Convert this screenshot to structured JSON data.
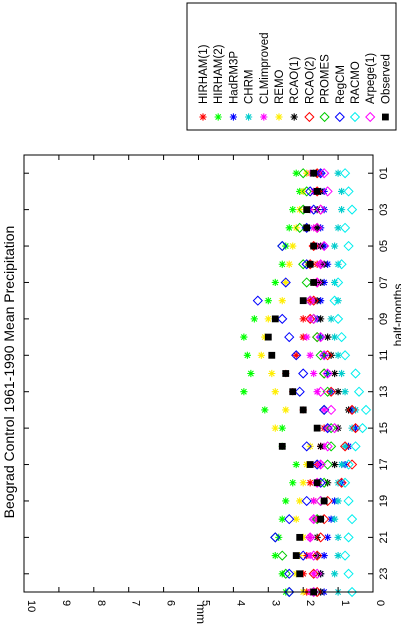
{
  "chart_data": {
    "type": "scatter",
    "title": "Beograd Control 1961-1990 Mean Precipitation",
    "xlabel": "half-months",
    "ylabel": "mm",
    "xlim": [
      0,
      24
    ],
    "ylim": [
      0,
      10
    ],
    "x_ticks": [
      "01",
      "03",
      "05",
      "07",
      "09",
      "11",
      "13",
      "15",
      "17",
      "19",
      "21",
      "23"
    ],
    "y_ticks": [
      "0",
      "1",
      "2",
      "3",
      "4",
      "5",
      "6",
      "7",
      "8",
      "9",
      "10"
    ],
    "x": [
      1,
      2,
      3,
      4,
      5,
      6,
      7,
      8,
      9,
      10,
      11,
      12,
      13,
      14,
      15,
      16,
      17,
      18,
      19,
      20,
      21,
      22,
      23,
      24
    ],
    "legend_position": "top-right",
    "series": [
      {
        "name": "HIRHAM(1)",
        "color": "#ff0000",
        "marker": "star",
        "values": [
          1.6,
          1.7,
          1.8,
          1.9,
          1.7,
          1.6,
          1.7,
          1.8,
          2.0,
          2.0,
          2.2,
          2.5,
          2.3,
          2.0,
          1.4,
          1.5,
          1.6,
          1.8,
          1.7,
          1.6,
          1.8,
          1.9,
          2.0,
          1.9
        ]
      },
      {
        "name": "HIRHAM(2)",
        "color": "#00ff00",
        "marker": "star",
        "values": [
          2.2,
          2.1,
          2.3,
          2.4,
          2.5,
          2.6,
          2.8,
          3.0,
          3.4,
          3.7,
          3.6,
          3.5,
          3.7,
          3.1,
          2.6,
          2.6,
          2.2,
          2.3,
          2.5,
          2.6,
          2.7,
          2.8,
          2.6,
          2.5
        ]
      },
      {
        "name": "HadRM3P",
        "color": "#0000ff",
        "marker": "star",
        "values": [
          1.5,
          1.4,
          1.4,
          1.5,
          1.4,
          1.3,
          1.4,
          1.5,
          1.6,
          1.5,
          1.4,
          1.3,
          1.2,
          0.6,
          0.5,
          0.7,
          0.8,
          0.9,
          1.1,
          1.2,
          1.3,
          1.4,
          1.5,
          1.4
        ]
      },
      {
        "name": "CHRM",
        "color": "#00cccc",
        "marker": "star",
        "values": [
          1.0,
          0.9,
          0.9,
          1.0,
          1.1,
          1.0,
          1.1,
          1.0,
          1.2,
          1.1,
          1.0,
          0.9,
          0.8,
          0.5,
          0.6,
          0.8,
          0.9,
          1.0,
          1.0,
          1.1,
          1.0,
          1.0,
          1.1,
          1.0
        ]
      },
      {
        "name": "CLMimproved",
        "color": "#ff00ff",
        "marker": "star",
        "values": [
          1.8,
          1.7,
          1.8,
          1.7,
          1.6,
          1.5,
          1.6,
          1.7,
          1.8,
          1.9,
          1.8,
          1.7,
          1.6,
          1.4,
          1.3,
          1.4,
          1.5,
          1.6,
          1.7,
          1.7,
          1.8,
          1.8,
          1.7,
          1.8
        ]
      },
      {
        "name": "REMO",
        "color": "#ffee00",
        "marker": "star",
        "values": [
          1.9,
          2.0,
          2.1,
          2.2,
          2.3,
          2.4,
          2.5,
          2.6,
          3.0,
          3.1,
          3.2,
          2.9,
          2.8,
          2.5,
          2.8,
          1.8,
          1.9,
          2.0,
          2.1,
          2.2,
          2.0,
          2.1,
          2.2,
          2.0
        ]
      },
      {
        "name": "RCAO(1)",
        "color": "#000000",
        "marker": "star",
        "values": [
          1.7,
          1.5,
          1.6,
          1.6,
          1.5,
          1.4,
          1.5,
          1.6,
          1.5,
          1.3,
          1.2,
          1.1,
          1.0,
          0.7,
          1.0,
          1.5,
          1.1,
          1.3,
          1.4,
          1.5,
          1.6,
          1.6,
          1.5,
          1.5
        ]
      },
      {
        "name": "RCAO(2)",
        "color": "#ff0000",
        "marker": "diamond",
        "values": [
          1.6,
          1.6,
          1.5,
          1.6,
          1.7,
          1.8,
          1.6,
          1.7,
          1.8,
          1.6,
          1.3,
          1.4,
          1.2,
          0.6,
          0.5,
          0.8,
          0.6,
          0.9,
          1.3,
          1.4,
          1.5,
          1.6,
          1.7,
          1.6
        ]
      },
      {
        "name": "PROMES",
        "color": "#00cc00",
        "marker": "diamond",
        "values": [
          2.0,
          1.9,
          2.0,
          2.1,
          2.6,
          2.0,
          1.9,
          1.8,
          1.7,
          1.6,
          1.5,
          1.4,
          1.3,
          1.4,
          1.2,
          1.2,
          1.3,
          1.4,
          1.5,
          1.6,
          2.8,
          2.6,
          2.5,
          2.4
        ]
      },
      {
        "name": "RegCM",
        "color": "#0000ff",
        "marker": "diamond",
        "values": [
          1.5,
          1.8,
          1.7,
          1.9,
          2.6,
          1.9,
          2.5,
          3.3,
          2.6,
          2.4,
          2.2,
          2.0,
          2.1,
          1.4,
          1.3,
          1.9,
          1.6,
          1.5,
          1.9,
          2.4,
          2.8,
          2.0,
          2.4,
          2.4
        ]
      },
      {
        "name": "RACMO",
        "color": "#00eeee",
        "marker": "diamond",
        "values": [
          0.8,
          0.7,
          0.6,
          0.8,
          0.7,
          0.9,
          1.0,
          1.1,
          1.0,
          0.9,
          0.8,
          0.5,
          0.4,
          0.2,
          0.3,
          0.5,
          0.7,
          0.8,
          0.7,
          0.6,
          0.7,
          0.8,
          0.7,
          0.6
        ]
      },
      {
        "name": "Arpege(1)",
        "color": "#ff00ff",
        "marker": "diamond",
        "values": [
          1.4,
          1.3,
          1.5,
          1.6,
          1.4,
          1.5,
          1.6,
          1.8,
          1.7,
          1.5,
          1.4,
          1.3,
          1.5,
          1.2,
          1.1,
          1.3,
          1.5,
          1.6,
          1.5,
          1.7,
          1.8,
          1.7,
          1.6,
          1.7
        ]
      },
      {
        "name": "Observed",
        "color": "#000000",
        "marker": "square",
        "values": [
          1.7,
          1.6,
          1.9,
          1.9,
          1.7,
          1.8,
          1.7,
          2.0,
          2.8,
          3.0,
          2.9,
          2.5,
          2.3,
          2.0,
          1.6,
          2.6,
          1.8,
          1.6,
          1.4,
          1.5,
          2.1,
          2.2,
          2.1,
          1.7
        ]
      }
    ]
  }
}
